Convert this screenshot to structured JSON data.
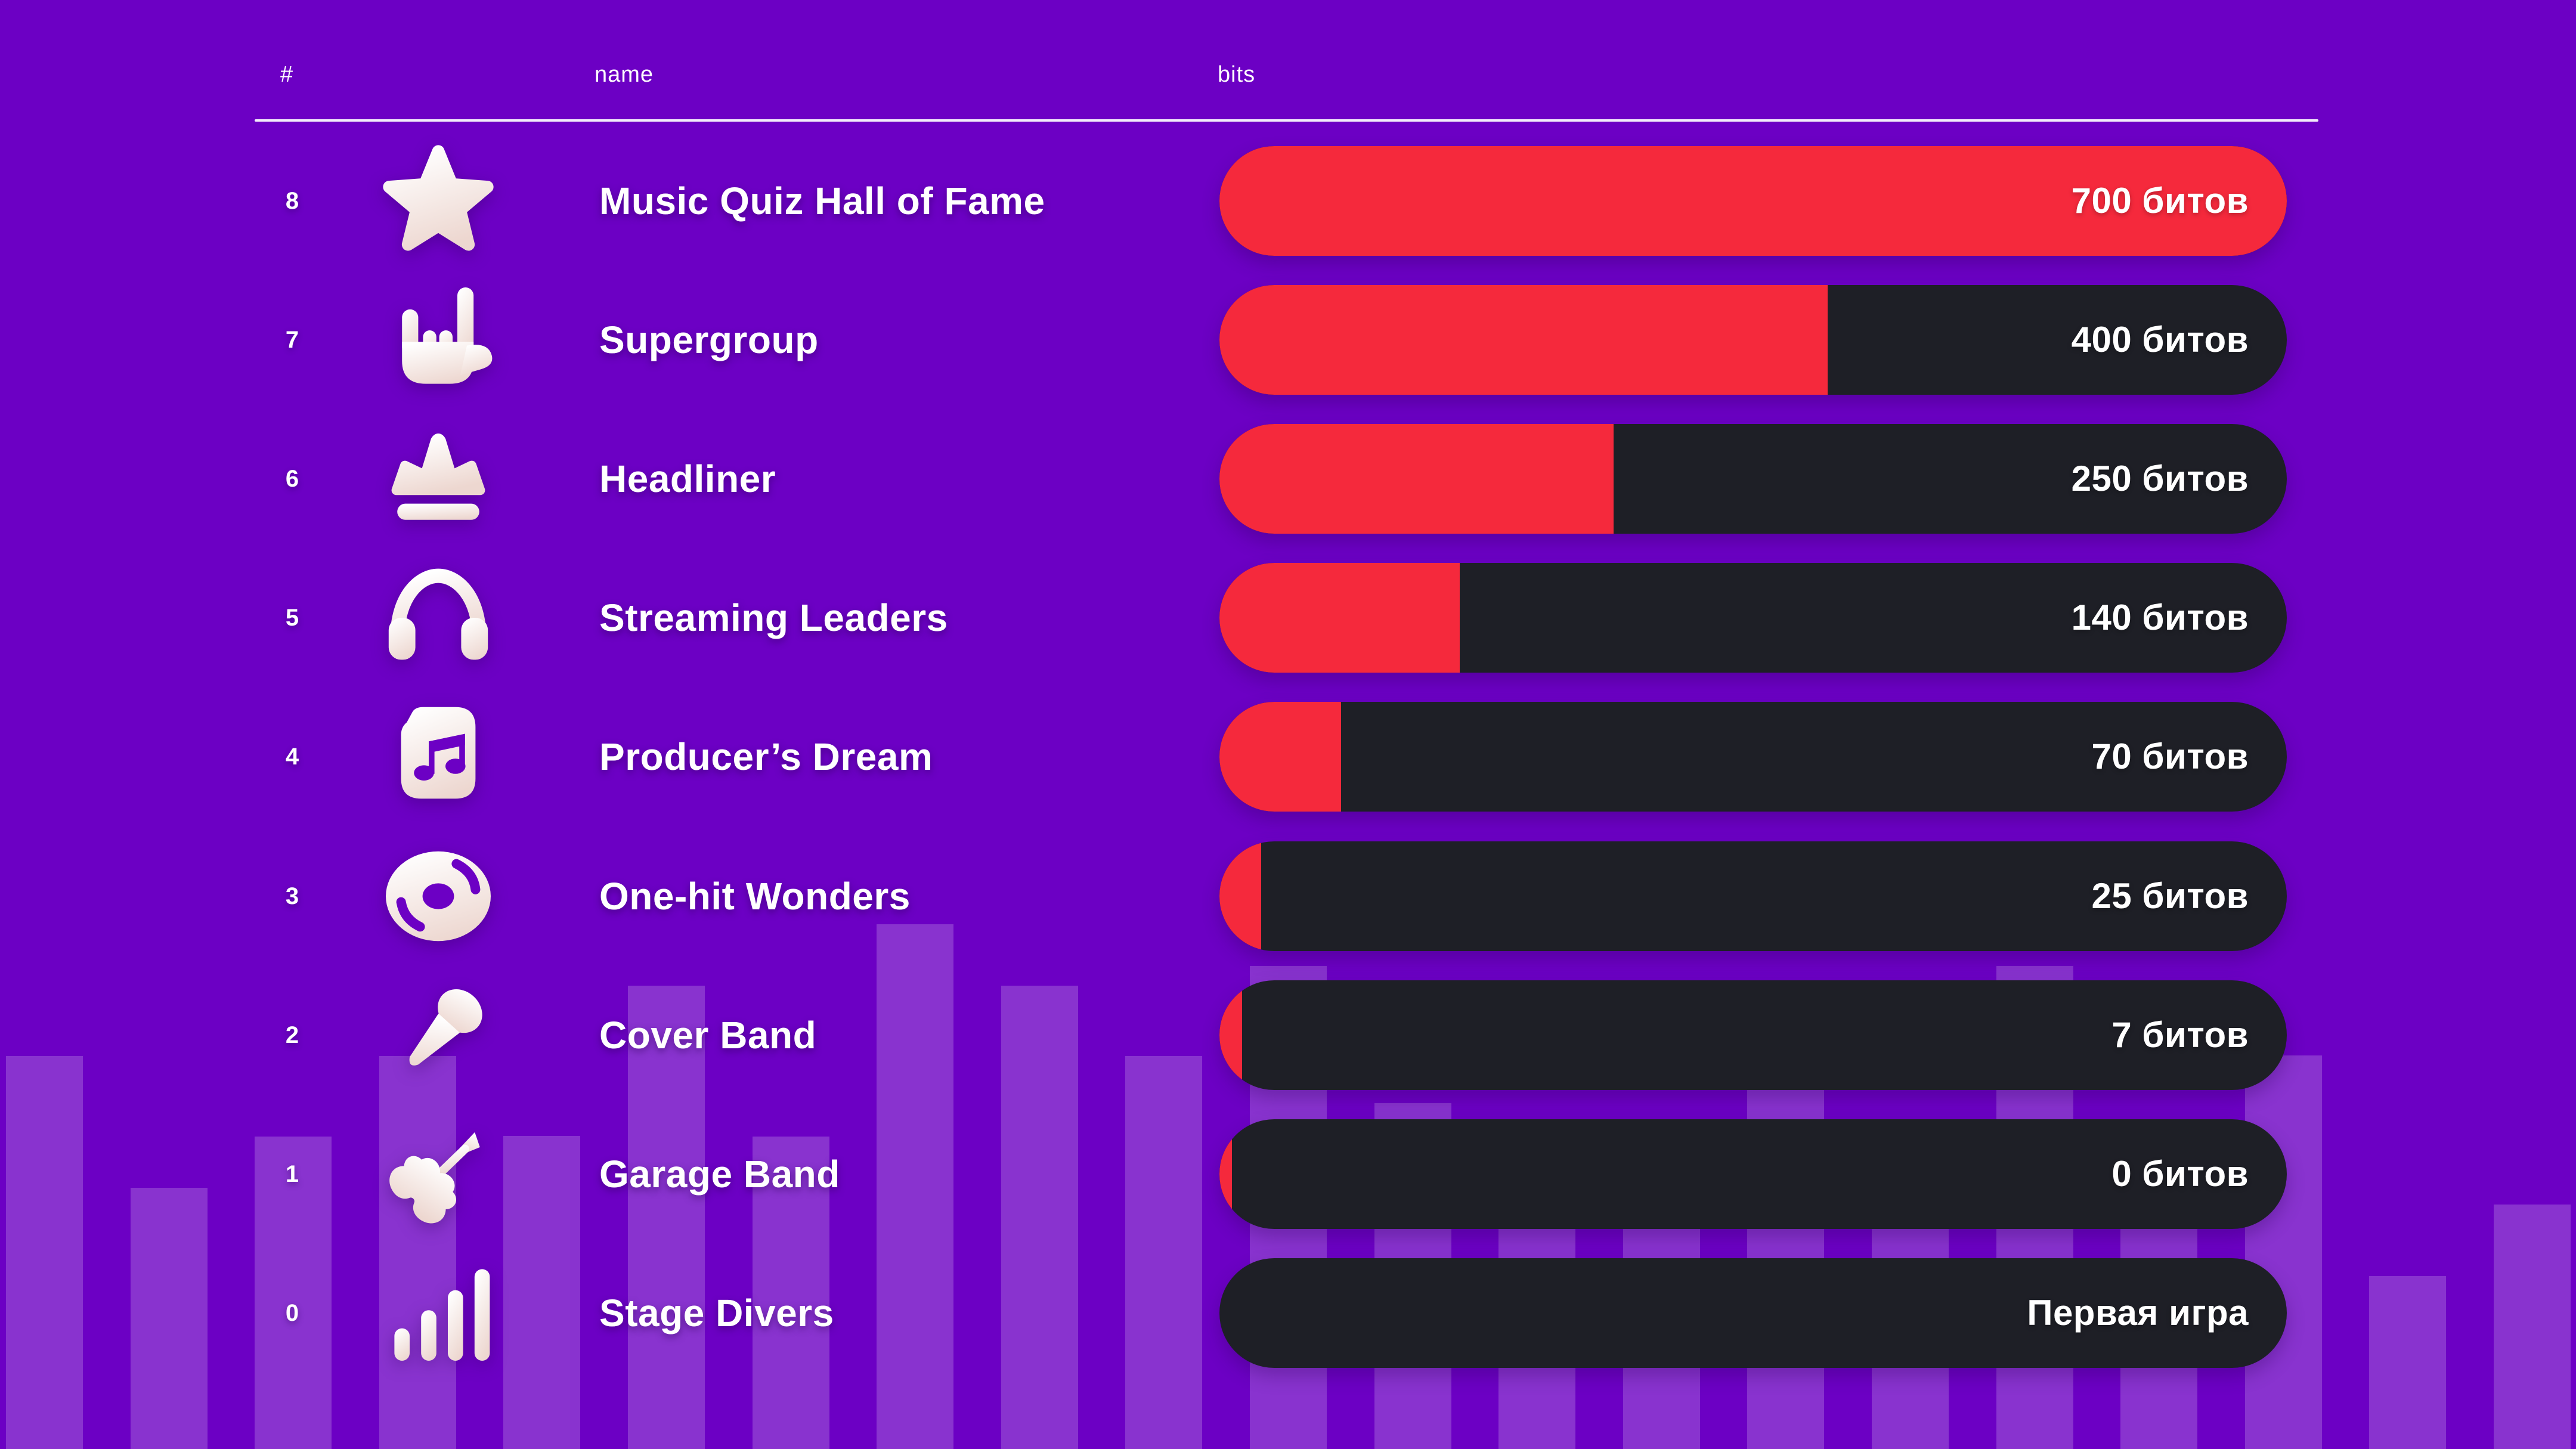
{
  "header": {
    "columns": [
      "#",
      "name",
      "bits"
    ]
  },
  "table": {
    "rows": [
      {
        "rank": "8",
        "name": "Music Quiz Hall of Fame",
        "bits_label": "700 битов",
        "icon": "star",
        "fill_pct": 100
      },
      {
        "rank": "7",
        "name": "Supergroup",
        "bits_label": "400 битов",
        "icon": "rock-hand",
        "fill_pct": 57
      },
      {
        "rank": "6",
        "name": "Headliner",
        "bits_label": "250 битов",
        "icon": "crown",
        "fill_pct": 36.9
      },
      {
        "rank": "5",
        "name": "Streaming Leaders",
        "bits_label": "140 битов",
        "icon": "headphones",
        "fill_pct": 22.5
      },
      {
        "rank": "4",
        "name": "Producer’s Dream",
        "bits_label": "70 битов",
        "icon": "music-file",
        "fill_pct": 11.4
      },
      {
        "rank": "3",
        "name": "One-hit Wonders",
        "bits_label": "25 битов",
        "icon": "vinyl-record",
        "fill_pct": 3.9
      },
      {
        "rank": "2",
        "name": "Cover Band",
        "bits_label": "7 битов",
        "icon": "microphone",
        "fill_pct": 2.1
      },
      {
        "rank": "1",
        "name": "Garage Band",
        "bits_label": "0 битов",
        "icon": "guitar",
        "fill_pct": 1.2
      },
      {
        "rank": "0",
        "name": "Stage Divers",
        "bits_label": "Первая игра",
        "icon": "stats-bars",
        "fill_pct": 0
      }
    ]
  },
  "chart_data": {
    "type": "bar",
    "orientation": "horizontal",
    "title": "",
    "categories": [
      "Music Quiz Hall of Fame",
      "Supergroup",
      "Headliner",
      "Streaming Leaders",
      "Producer’s Dream",
      "One-hit Wonders",
      "Cover Band",
      "Garage Band",
      "Stage Divers"
    ],
    "ranks": [
      8,
      7,
      6,
      5,
      4,
      3,
      2,
      1,
      0
    ],
    "values": [
      700,
      400,
      250,
      140,
      70,
      25,
      7,
      0,
      null
    ],
    "value_labels": [
      "700 битов",
      "400 битов",
      "250 битов",
      "140 битов",
      "70 битов",
      "25 битов",
      "7 битов",
      "0 битов",
      "Первая игра"
    ],
    "fill_pct": [
      100,
      57,
      36.9,
      22.5,
      11.4,
      3.9,
      2.1,
      1.2,
      0
    ],
    "xlim": [
      0,
      700
    ],
    "legend": "none",
    "grid": false
  },
  "colors": {
    "background": "#6C00C4",
    "equalizer_stripe": "rgba(255,255,255,0.20)",
    "bar_track": "#1E1F26",
    "bar_fill": "#F5293C",
    "text": "#FFFFFF",
    "icon_gradient_start": "#FFFFFF",
    "icon_gradient_end": "#EDD7D0"
  },
  "decor": {
    "equalizer_heights": [
      659,
      438,
      524,
      659,
      525,
      777,
      524,
      880,
      777,
      659,
      810,
      580,
      524,
      370,
      659,
      370,
      810,
      445,
      660,
      290,
      410
    ]
  }
}
